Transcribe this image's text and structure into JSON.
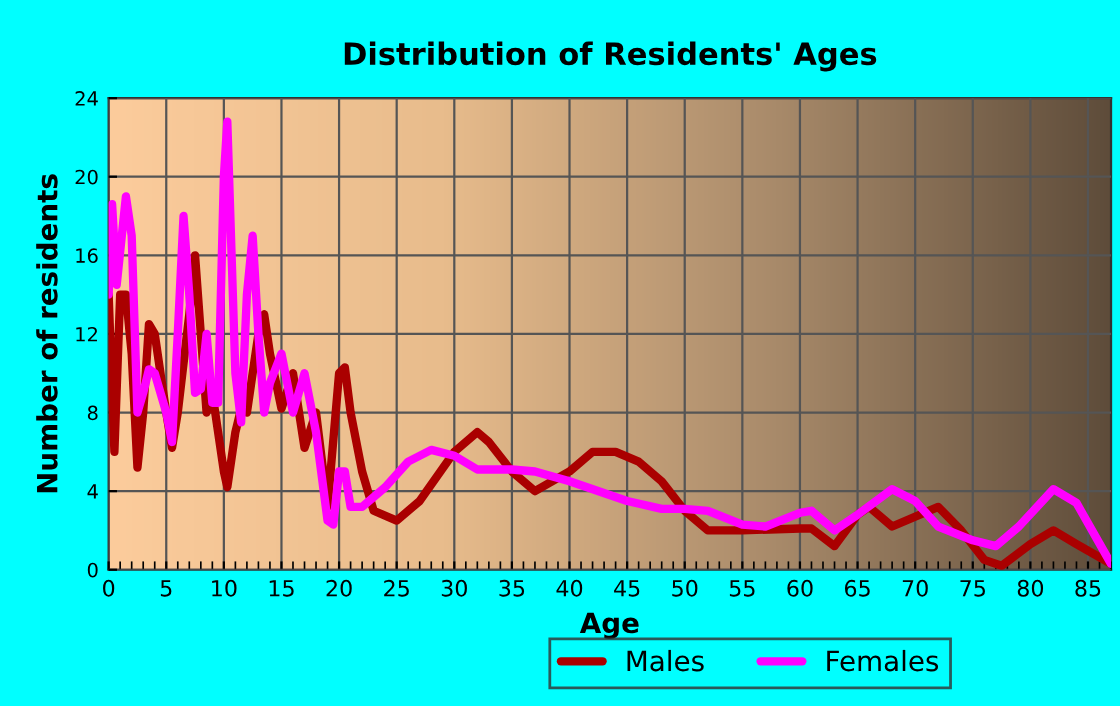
{
  "chart_data": {
    "type": "line",
    "title": "Distribution of Residents' Ages",
    "xlabel": "Age",
    "ylabel": "Number of residents",
    "xlim": [
      0,
      87
    ],
    "xticks": [
      0,
      5,
      10,
      15,
      20,
      25,
      30,
      35,
      40,
      45,
      50,
      55,
      60,
      65,
      70,
      75,
      80,
      85
    ],
    "ylim": [
      0,
      24
    ],
    "yticks": [
      0,
      4,
      8,
      12,
      16,
      20,
      24
    ],
    "grid": true,
    "legend": "bottom",
    "line_style": "solid",
    "series": [
      {
        "name": "Males",
        "color": "#aa0000",
        "x": [
          0,
          0.5,
          1,
          1.5,
          2,
          2.5,
          3,
          3.5,
          4,
          5,
          5.5,
          6,
          7,
          7.5,
          8,
          8.5,
          9,
          10,
          10.3,
          11,
          11.5,
          12,
          13,
          13.5,
          14,
          15,
          16,
          17,
          18,
          19,
          20,
          20.5,
          21,
          22,
          23,
          25,
          27,
          30,
          32,
          33,
          35,
          37,
          40,
          42,
          44,
          46,
          48,
          50,
          52,
          55,
          60,
          61,
          63,
          65,
          66,
          68,
          72,
          74,
          76,
          77.5,
          80,
          82,
          84,
          87
        ],
        "values": [
          14,
          6,
          14,
          14,
          11,
          5.2,
          8,
          12.5,
          12,
          8,
          6.2,
          8,
          13,
          16,
          12,
          8,
          9,
          5,
          4.2,
          7,
          8.2,
          8,
          12,
          13,
          11,
          8.2,
          10,
          6.2,
          8,
          3.2,
          10,
          10.3,
          8,
          5,
          3,
          2.5,
          3.5,
          6,
          7,
          6.5,
          5,
          4,
          5,
          6,
          6,
          5.5,
          4.5,
          3,
          2,
          2,
          2.1,
          2.1,
          1.2,
          2.8,
          3.2,
          2.2,
          3.2,
          2,
          0.5,
          0.2,
          1.3,
          2,
          1.3,
          0.3
        ]
      },
      {
        "name": "Females",
        "color": "#ff00ff",
        "x": [
          0,
          0.3,
          0.7,
          1.5,
          2,
          2.5,
          3,
          3.5,
          4,
          5,
          5.5,
          6,
          6.5,
          7,
          7.5,
          8,
          8.5,
          9,
          9.5,
          10,
          10.3,
          11,
          11.5,
          12,
          12.5,
          13,
          13.5,
          14,
          15,
          16,
          17,
          18,
          19,
          19.5,
          20,
          20.5,
          21,
          22,
          24,
          26,
          28,
          30,
          32,
          35,
          37,
          40,
          45,
          48,
          50,
          52,
          55,
          57,
          60,
          61,
          63,
          65,
          68,
          70,
          72,
          75,
          77,
          79,
          82,
          84,
          87
        ],
        "values": [
          14,
          18.6,
          14.5,
          19,
          17,
          8,
          9,
          10.2,
          10,
          8,
          6.5,
          12,
          18,
          14,
          9,
          9.2,
          12,
          8.5,
          8.5,
          20,
          22.8,
          10,
          7.5,
          14,
          17,
          12,
          8,
          9.5,
          11,
          8,
          10,
          7,
          2.5,
          2.3,
          5,
          5,
          3.2,
          3.2,
          4.2,
          5.5,
          6.1,
          5.8,
          5.1,
          5.1,
          5,
          4.5,
          3.5,
          3.1,
          3.1,
          3,
          2.3,
          2.2,
          2.9,
          3,
          2,
          2.8,
          4.1,
          3.5,
          2.2,
          1.5,
          1.2,
          2.2,
          4.1,
          3.4,
          0.3
        ]
      }
    ]
  }
}
